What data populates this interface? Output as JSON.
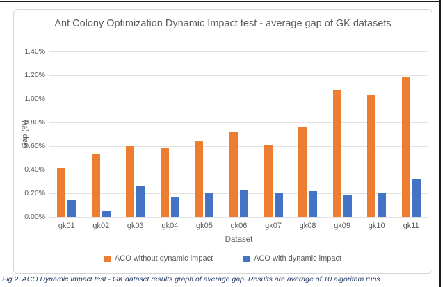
{
  "figure": {
    "caption": "Fig 2. ACO Dynamic Impact test - GK dataset results graph of average gap. Results are average of 10 algorithm runs"
  },
  "chart_data": {
    "type": "bar",
    "title": "Ant Colony Optimization Dynamic Impact test - average gap of GK datasets",
    "xlabel": "Dataset",
    "ylabel": "Gap (%)",
    "categories": [
      "gk01",
      "gk02",
      "gk03",
      "gk04",
      "gk05",
      "gk06",
      "gk07",
      "gk08",
      "gk09",
      "gk10",
      "gk11"
    ],
    "series": [
      {
        "name": "ACO without dynamic impact",
        "color": "#ED7D31",
        "values": [
          0.41,
          0.53,
          0.6,
          0.58,
          0.64,
          0.72,
          0.61,
          0.76,
          1.07,
          1.03,
          1.18
        ]
      },
      {
        "name": "ACO with dynamic impact",
        "color": "#4472C4",
        "values": [
          0.14,
          0.05,
          0.26,
          0.17,
          0.2,
          0.23,
          0.2,
          0.22,
          0.18,
          0.2,
          0.32
        ]
      }
    ],
    "ylim": [
      0,
      1.4
    ],
    "ytick_step": 0.2,
    "ytick_format": "0.00%",
    "grid": true,
    "legend_position": "bottom"
  },
  "page_colors": {
    "chart_border": "#d6d6d6",
    "gridline": "#e2e2e2",
    "text_gray": "#595959",
    "caption_navy": "#1f3864",
    "doc_border": "#1a1a1a"
  }
}
